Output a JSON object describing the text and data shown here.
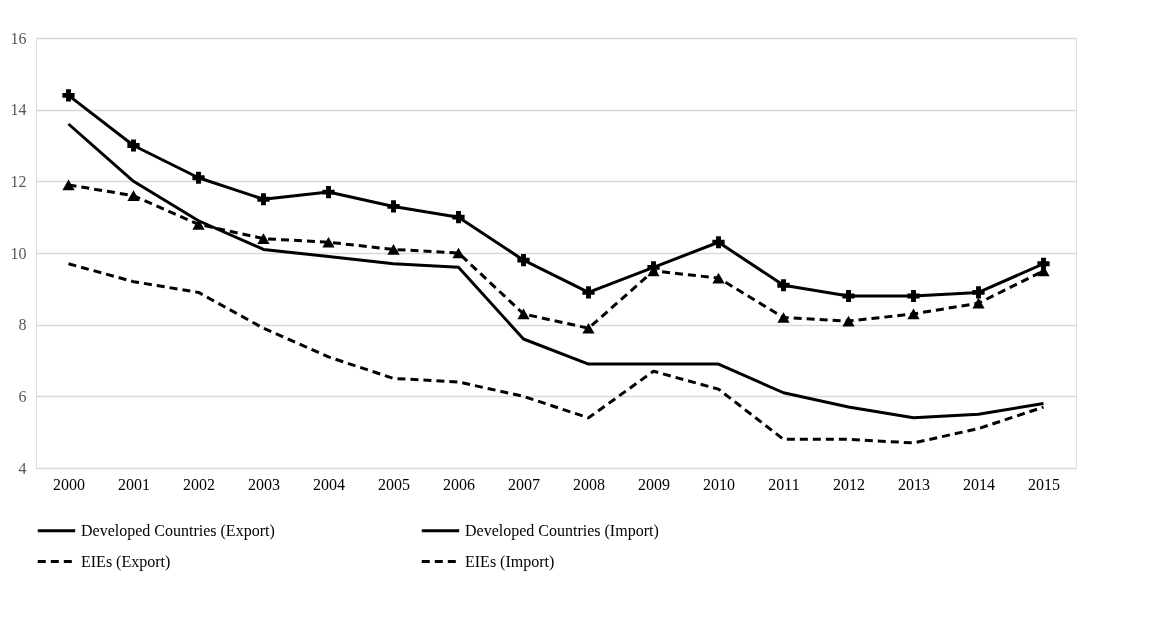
{
  "chart_data": {
    "type": "line",
    "categories": [
      "2000",
      "2001",
      "2002",
      "2003",
      "2004",
      "2005",
      "2006",
      "2007",
      "2008",
      "2009",
      "2010",
      "2011",
      "2012",
      "2013",
      "2014",
      "2015"
    ],
    "series": [
      {
        "name": "Developed Countries (Export)",
        "color": "#000000",
        "line_style": "solid",
        "marker": "none",
        "values": [
          13.6,
          12.0,
          10.9,
          10.1,
          9.9,
          9.7,
          9.6,
          7.6,
          6.9,
          6.9,
          6.9,
          6.1,
          5.7,
          5.4,
          5.5,
          5.8
        ]
      },
      {
        "name": "Developed Countries (Import)",
        "color": "#000000",
        "line_style": "solid",
        "marker": "cross",
        "values": [
          14.4,
          13.0,
          12.1,
          11.5,
          11.7,
          11.3,
          11.0,
          9.8,
          8.9,
          9.6,
          10.3,
          9.1,
          8.8,
          8.8,
          8.9,
          9.7
        ]
      },
      {
        "name": "EIEs (Export)",
        "color": "#000000",
        "line_style": "dashed",
        "marker": "none",
        "values": [
          9.7,
          9.2,
          8.9,
          7.9,
          7.1,
          6.5,
          6.4,
          6.0,
          5.4,
          6.7,
          6.2,
          4.8,
          4.8,
          4.7,
          5.1,
          5.7
        ]
      },
      {
        "name": "EIEs (Import)",
        "color": "#000000",
        "line_style": "dashed",
        "marker": "triangle",
        "values": [
          11.9,
          11.6,
          10.8,
          10.4,
          10.3,
          10.1,
          10.0,
          8.3,
          7.9,
          9.5,
          9.3,
          8.2,
          8.1,
          8.3,
          8.6,
          9.5
        ]
      }
    ],
    "ylim": [
      4,
      16
    ],
    "yticks": [
      4,
      6,
      8,
      10,
      12,
      14,
      16
    ],
    "grid": "y",
    "legend": "bottom"
  }
}
